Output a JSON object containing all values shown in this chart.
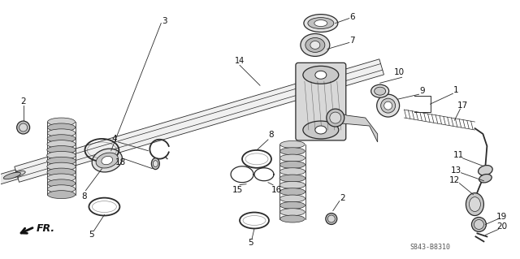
{
  "background_color": "#ffffff",
  "diagram_code": "S843-B8310",
  "fig_width": 6.4,
  "fig_height": 3.19,
  "dpi": 100,
  "line_color": "#2a2a2a",
  "label_fontsize": 7.0
}
